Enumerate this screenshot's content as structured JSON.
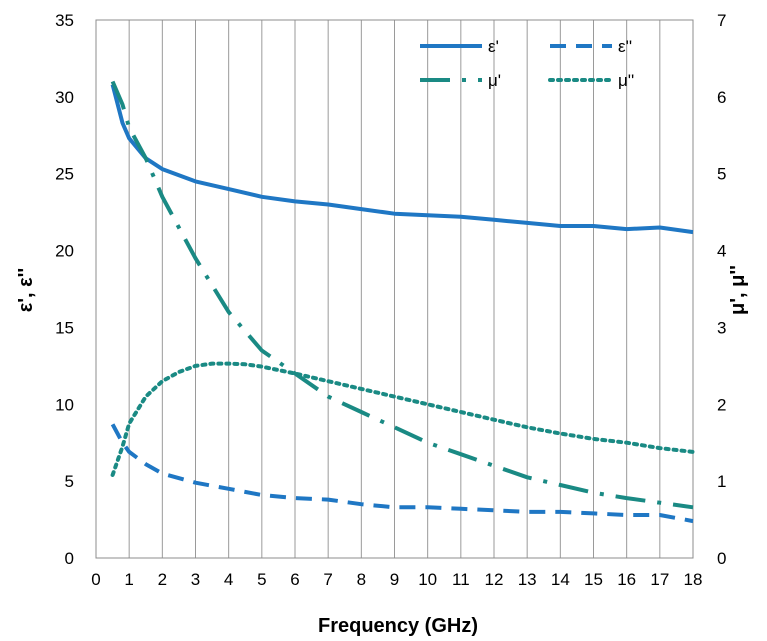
{
  "chart_data": {
    "type": "line",
    "xlabel": "Frequency (GHz)",
    "ylabel_left": "ε', ε''",
    "ylabel_right": "μ', μ''",
    "xlim": [
      0,
      18
    ],
    "ylim_left": [
      0,
      35
    ],
    "ylim_right": [
      0,
      7
    ],
    "x_ticks": [
      0,
      1,
      2,
      3,
      4,
      5,
      6,
      7,
      8,
      9,
      10,
      11,
      12,
      13,
      14,
      15,
      16,
      17,
      18
    ],
    "y_left_ticks": [
      0,
      5,
      10,
      15,
      20,
      25,
      30,
      35
    ],
    "y_right_ticks": [
      0,
      1,
      2,
      3,
      4,
      5,
      6,
      7
    ],
    "grid": "vertical",
    "legend_position": "top-right",
    "series": [
      {
        "name": "ε'",
        "axis": "left",
        "style": "solid",
        "color": "#1f77c4",
        "x": [
          0.5,
          0.8,
          1,
          1.5,
          2,
          3,
          4,
          5,
          6,
          7,
          8,
          9,
          10,
          11,
          12,
          13,
          14,
          15,
          16,
          17,
          18
        ],
        "y": [
          30.8,
          28.3,
          27.3,
          26.0,
          25.3,
          24.5,
          24.0,
          23.5,
          23.2,
          23.0,
          22.7,
          22.4,
          22.3,
          22.2,
          22.0,
          21.8,
          21.6,
          21.6,
          21.4,
          21.5,
          21.2
        ]
      },
      {
        "name": "ε''",
        "axis": "left",
        "style": "dashed",
        "color": "#1f77c4",
        "x": [
          0.5,
          0.8,
          1,
          1.5,
          2,
          3,
          4,
          5,
          6,
          7,
          8,
          9,
          10,
          11,
          12,
          13,
          14,
          15,
          16,
          17,
          18
        ],
        "y": [
          8.7,
          7.5,
          6.9,
          6.1,
          5.5,
          4.9,
          4.5,
          4.1,
          3.9,
          3.8,
          3.5,
          3.3,
          3.3,
          3.2,
          3.1,
          3.0,
          3.0,
          2.9,
          2.8,
          2.8,
          2.4
        ]
      },
      {
        "name": "μ'",
        "axis": "right",
        "style": "dash-dot",
        "color": "#1a8a84",
        "x": [
          0.5,
          0.8,
          1,
          1.5,
          2,
          3,
          4,
          5,
          6,
          7,
          8,
          9,
          10,
          11,
          12,
          13,
          14,
          15,
          16,
          17,
          18
        ],
        "y": [
          6.2,
          5.9,
          5.6,
          5.2,
          4.7,
          3.9,
          3.2,
          2.7,
          2.4,
          2.1,
          1.9,
          1.7,
          1.5,
          1.35,
          1.2,
          1.05,
          0.95,
          0.85,
          0.78,
          0.72,
          0.66
        ]
      },
      {
        "name": "μ''",
        "axis": "right",
        "style": "dotted",
        "color": "#1a8a84",
        "x": [
          0.5,
          0.8,
          1,
          1.5,
          2,
          2.5,
          3,
          3.5,
          4,
          4.5,
          5,
          6,
          7,
          8,
          9,
          10,
          11,
          12,
          13,
          14,
          15,
          16,
          17,
          18
        ],
        "y": [
          1.08,
          1.45,
          1.75,
          2.1,
          2.3,
          2.42,
          2.5,
          2.53,
          2.53,
          2.52,
          2.49,
          2.4,
          2.3,
          2.2,
          2.1,
          2.0,
          1.9,
          1.8,
          1.7,
          1.62,
          1.55,
          1.5,
          1.43,
          1.38
        ]
      }
    ]
  }
}
